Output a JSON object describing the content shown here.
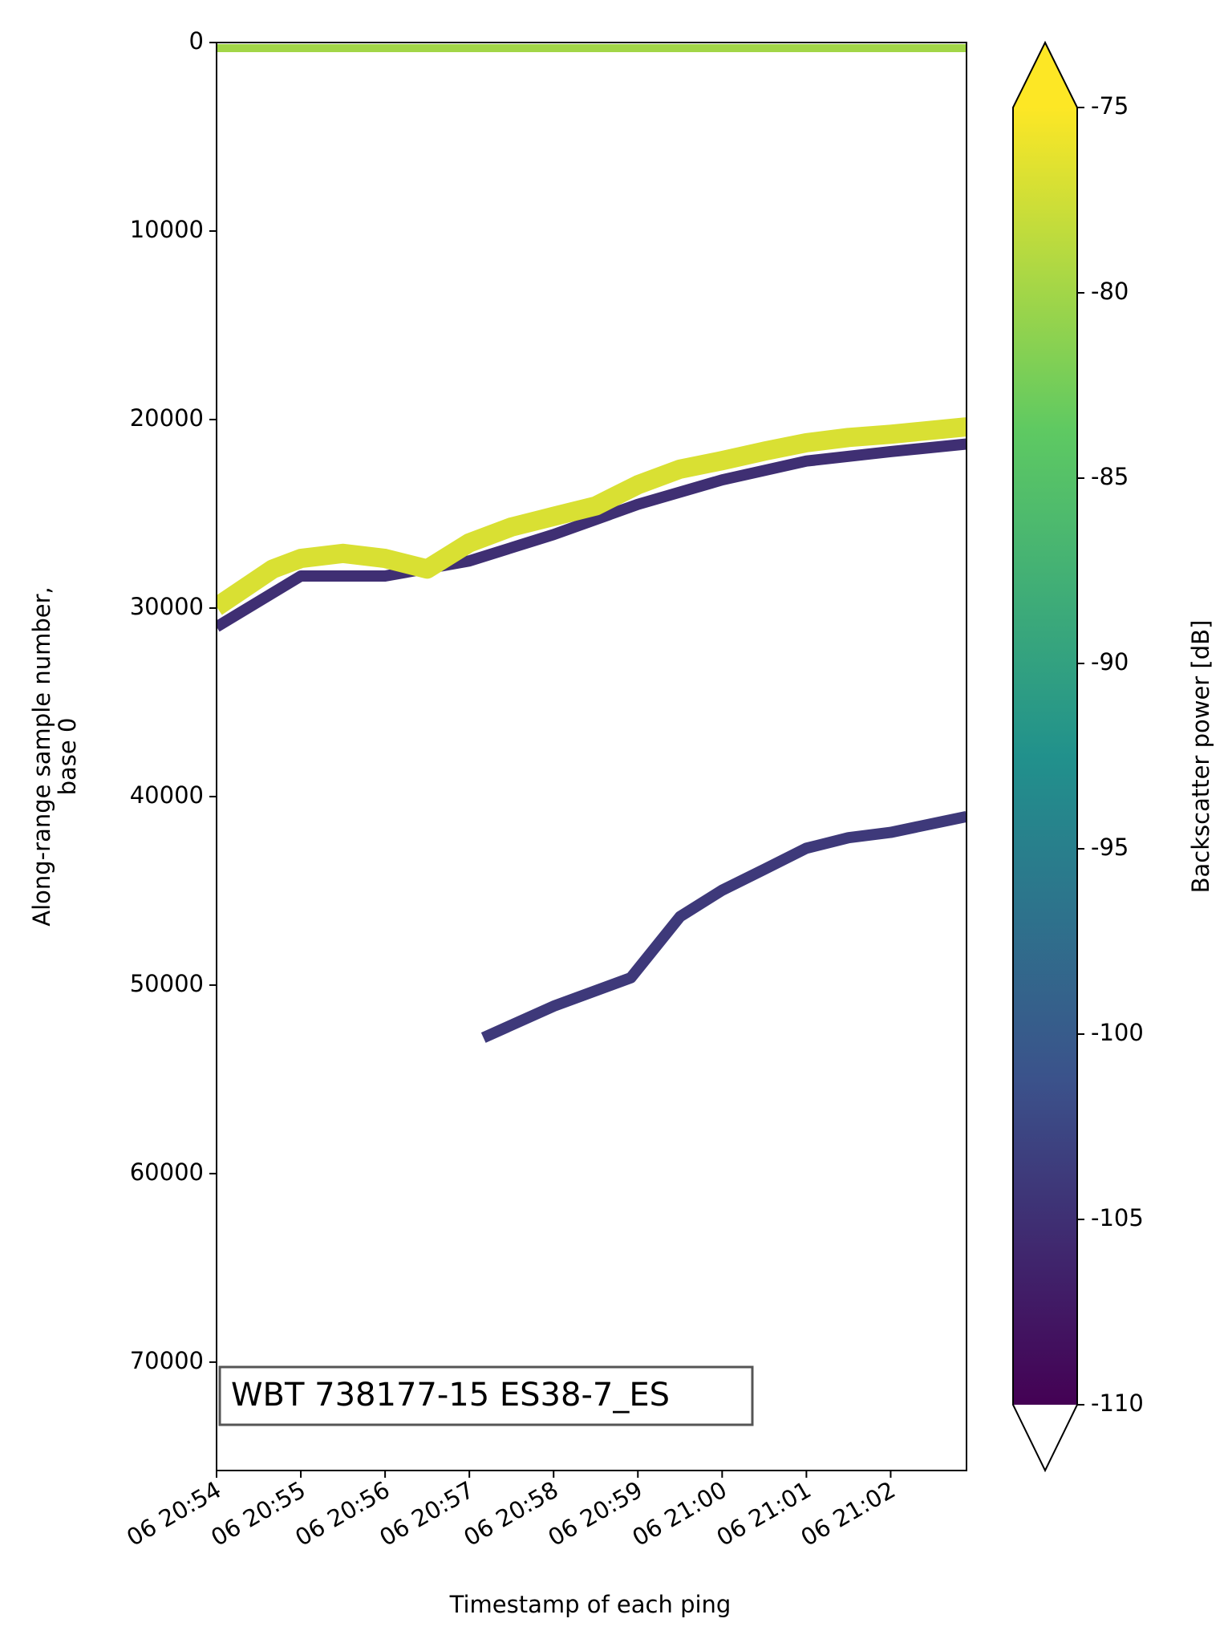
{
  "chart_data": {
    "type": "echogram",
    "xlabel": "Timestamp of each ping",
    "ylabel": [
      "Along-range sample number,",
      "base 0"
    ],
    "colorbar_label": "Backscatter power [dB]",
    "annotation": "WBT 738177-15 ES38-7_ES",
    "xlim": [
      "20:54",
      "21:02:54"
    ],
    "xticks": [
      {
        "value": "20:54",
        "label": "06 20:54"
      },
      {
        "value": "20:55",
        "label": "06 20:55"
      },
      {
        "value": "20:56",
        "label": "06 20:56"
      },
      {
        "value": "20:57",
        "label": "06 20:57"
      },
      {
        "value": "20:58",
        "label": "06 20:58"
      },
      {
        "value": "20:59",
        "label": "06 20:59"
      },
      {
        "value": "21:00",
        "label": "06 21:00"
      },
      {
        "value": "21:01",
        "label": "06 21:01"
      },
      {
        "value": "21:02",
        "label": "06 21:02"
      }
    ],
    "ylim": [
      75750,
      0
    ],
    "yticks": [
      0,
      10000,
      20000,
      30000,
      40000,
      50000,
      60000,
      70000
    ],
    "clim": [
      -110,
      -75
    ],
    "cticks": [
      -75,
      -80,
      -85,
      -90,
      -95,
      -100,
      -105,
      -110
    ],
    "colormap": [
      "#440154",
      "#3b528b",
      "#21918c",
      "#5ec962",
      "#fde725"
    ],
    "series": [
      {
        "value": -80,
        "x": [
          "20:54",
          "21:02:54"
        ],
        "y": [
          300,
          300
        ]
      },
      {
        "value": -105,
        "x": [
          "20:54",
          "20:55",
          "20:56",
          "20:57",
          "20:58",
          "20:59",
          "21:00",
          "21:01",
          "21:02",
          "21:02:54"
        ],
        "y": [
          31000,
          28300,
          28300,
          27500,
          26100,
          24500,
          23200,
          22200,
          21700,
          21300
        ]
      },
      {
        "value": -77,
        "x": [
          "20:54",
          "20:54:40",
          "20:55",
          "20:55:30",
          "20:56",
          "20:56:30",
          "20:57",
          "20:57:30",
          "20:58",
          "20:58:30",
          "20:59",
          "20:59:30",
          "21:00",
          "21:00:30",
          "21:01",
          "21:01:30",
          "21:02",
          "21:02:54"
        ],
        "y": [
          29940,
          27930,
          27370,
          27100,
          27370,
          27930,
          26540,
          25700,
          25140,
          24580,
          23460,
          22630,
          22180,
          21680,
          21230,
          20950,
          20780,
          20390
        ]
      },
      {
        "value": -104,
        "x": [
          "20:57:10",
          "20:58",
          "20:58:55",
          "20:59:30",
          "21:00",
          "21:00:30",
          "21:01",
          "21:01:30",
          "21:02",
          "21:02:54"
        ],
        "y": [
          52790,
          51120,
          49610,
          46370,
          44970,
          43860,
          42740,
          42180,
          41900,
          41060
        ]
      }
    ]
  }
}
